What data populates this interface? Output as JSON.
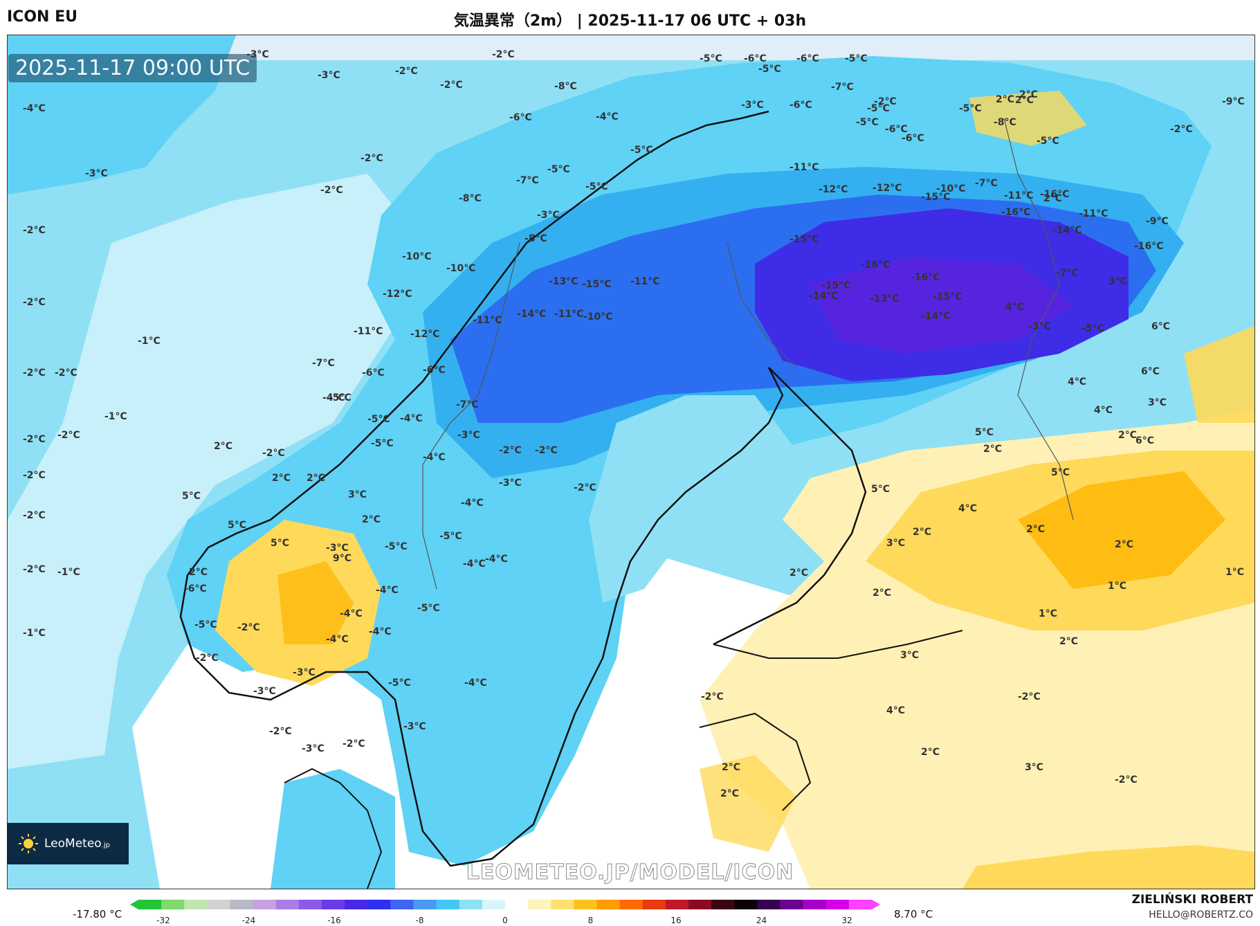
{
  "header": {
    "model_name": "ICON EU",
    "title": "気温異常（2m） | 2025-11-17 06 UTC + 03h"
  },
  "map": {
    "timestamp": "2025-11-17 09:00 UTC",
    "watermark": "LEOMETEO.JP/MODEL/ICON",
    "logo": {
      "brand": "LeoMeteo",
      "suffix": ".jp",
      "icon": "sun-icon"
    },
    "labels": [
      {
        "t": "-3°C",
        "k": "c"
      },
      {
        "t": "-2°C",
        "k": "c"
      },
      {
        "t": "-3°C",
        "k": "c"
      },
      {
        "t": "-2°C",
        "k": "c"
      },
      {
        "t": "-2°C",
        "k": "c"
      },
      {
        "t": "-4°C",
        "k": "c"
      },
      {
        "t": "-3°C",
        "k": "c"
      },
      {
        "t": "-2°C",
        "k": "c"
      },
      {
        "t": "-2°C",
        "k": "c"
      },
      {
        "t": "-2°C",
        "k": "c"
      },
      {
        "t": "-2°C",
        "k": "c"
      },
      {
        "t": "-1°C",
        "k": "c"
      },
      {
        "t": "-2°C",
        "k": "c"
      },
      {
        "t": "-2°C",
        "k": "c"
      },
      {
        "t": "-1°C",
        "k": "c"
      },
      {
        "t": "-2°C",
        "k": "c"
      },
      {
        "t": "-2°C",
        "k": "c"
      },
      {
        "t": "-2°C",
        "k": "c"
      },
      {
        "t": "-2°C",
        "k": "c"
      },
      {
        "t": "-2°C",
        "k": "c"
      },
      {
        "t": "-2°C",
        "k": "c"
      },
      {
        "t": "-1°C",
        "k": "c"
      },
      {
        "t": "-1°C",
        "k": "c"
      },
      {
        "t": "-6°C",
        "k": "c"
      },
      {
        "t": "-8°C",
        "k": "c"
      },
      {
        "t": "-7°C",
        "k": "c"
      },
      {
        "t": "-8°C",
        "k": "c"
      },
      {
        "t": "-3°C",
        "k": "c"
      },
      {
        "t": "-8°C",
        "k": "c"
      },
      {
        "t": "-10°C",
        "k": "c"
      },
      {
        "t": "-10°C",
        "k": "c"
      },
      {
        "t": "-12°C",
        "k": "c"
      },
      {
        "t": "-13°C",
        "k": "c"
      },
      {
        "t": "-15°C",
        "k": "c"
      },
      {
        "t": "-11°C",
        "k": "c"
      },
      {
        "t": "-14°C",
        "k": "c"
      },
      {
        "t": "-11°C",
        "k": "c"
      },
      {
        "t": "-10°C",
        "k": "c"
      },
      {
        "t": "-11°C",
        "k": "c"
      },
      {
        "t": "-11°C",
        "k": "c"
      },
      {
        "t": "-12°C",
        "k": "c"
      },
      {
        "t": "-7°C",
        "k": "c"
      },
      {
        "t": "-6°C",
        "k": "c"
      },
      {
        "t": "-6°C",
        "k": "c"
      },
      {
        "t": "-7°C",
        "k": "c"
      },
      {
        "t": "-5°C",
        "k": "c"
      },
      {
        "t": "-4°C",
        "k": "c"
      },
      {
        "t": "-3°C",
        "k": "c"
      },
      {
        "t": "-5°C",
        "k": "c"
      },
      {
        "t": "-4°C",
        "k": "c"
      },
      {
        "t": "-4°C",
        "k": "c"
      },
      {
        "t": "-2°C",
        "k": "c"
      },
      {
        "t": "-2°C",
        "k": "c"
      },
      {
        "t": "-3°C",
        "k": "c"
      },
      {
        "t": "-4°C",
        "k": "c"
      },
      {
        "t": "-5°C",
        "k": "c"
      },
      {
        "t": "-5°C",
        "k": "c"
      },
      {
        "t": "-4°C",
        "k": "c"
      },
      {
        "t": "-4°C",
        "k": "c"
      },
      {
        "t": "-4°C",
        "k": "c"
      },
      {
        "t": "-5°C",
        "k": "c"
      },
      {
        "t": "-4°C",
        "k": "c"
      },
      {
        "t": "-4°C",
        "k": "c"
      },
      {
        "t": "-4°C",
        "k": "c"
      },
      {
        "t": "-5°C",
        "k": "c"
      },
      {
        "t": "-4°C",
        "k": "c"
      },
      {
        "t": "-3°C",
        "k": "c"
      },
      {
        "t": "-3°C",
        "k": "c"
      },
      {
        "t": "-2°C",
        "k": "c"
      },
      {
        "t": "-3°C",
        "k": "c"
      },
      {
        "t": "-2°C",
        "k": "c"
      },
      {
        "t": "-3°C",
        "k": "c"
      },
      {
        "t": "-6°C",
        "k": "c"
      },
      {
        "t": "-5°C",
        "k": "c"
      },
      {
        "t": "-2°C",
        "k": "c"
      },
      {
        "t": "-2°C",
        "k": "c"
      },
      {
        "t": "-5°C",
        "k": "c"
      },
      {
        "t": "-2°C",
        "k": "c"
      },
      {
        "t": "-3°C",
        "k": "c"
      },
      {
        "t": "2°C",
        "k": "w"
      },
      {
        "t": "2°C",
        "k": "w"
      },
      {
        "t": "2°C",
        "k": "w"
      },
      {
        "t": "3°C",
        "k": "w"
      },
      {
        "t": "5°C",
        "k": "w"
      },
      {
        "t": "5°C",
        "k": "w"
      },
      {
        "t": "2°C",
        "k": "w"
      },
      {
        "t": "9°C",
        "k": "w"
      },
      {
        "t": "5°C",
        "k": "w"
      },
      {
        "t": "2°C",
        "k": "w"
      },
      {
        "t": "-4°C",
        "k": "c"
      },
      {
        "t": "-5°C",
        "k": "c"
      },
      {
        "t": "-5°C",
        "k": "c"
      },
      {
        "t": "-5°C",
        "k": "c"
      },
      {
        "t": "-5°C",
        "k": "c"
      },
      {
        "t": "-6°C",
        "k": "c"
      },
      {
        "t": "-6°C",
        "k": "c"
      },
      {
        "t": "-5°C",
        "k": "c"
      },
      {
        "t": "-5°C",
        "k": "c"
      },
      {
        "t": "-3°C",
        "k": "c"
      },
      {
        "t": "-6°C",
        "k": "c"
      },
      {
        "t": "-2°C",
        "k": "c"
      },
      {
        "t": "-6°C",
        "k": "c"
      },
      {
        "t": "-5°C",
        "k": "c"
      },
      {
        "t": "-7°C",
        "k": "c"
      },
      {
        "t": "-5°C",
        "k": "c"
      },
      {
        "t": "-6°C",
        "k": "c"
      },
      {
        "t": "-5°C",
        "k": "c"
      },
      {
        "t": "2°C",
        "k": "w"
      },
      {
        "t": "-2°C",
        "k": "c"
      },
      {
        "t": "2°C",
        "k": "w"
      },
      {
        "t": "2°C",
        "k": "w"
      },
      {
        "t": "2°C",
        "k": "w"
      },
      {
        "t": "-9°C",
        "k": "c"
      },
      {
        "t": "-8°C",
        "k": "c"
      },
      {
        "t": "-5°C",
        "k": "c"
      },
      {
        "t": "-11°C",
        "k": "c"
      },
      {
        "t": "-11°C",
        "k": "c"
      },
      {
        "t": "-12°C",
        "k": "c"
      },
      {
        "t": "-12°C",
        "k": "c"
      },
      {
        "t": "-10°C",
        "k": "c"
      },
      {
        "t": "-7°C",
        "k": "c"
      },
      {
        "t": "-15°C",
        "k": "c"
      },
      {
        "t": "-16°C",
        "k": "c"
      },
      {
        "t": "-16°C",
        "k": "c"
      },
      {
        "t": "-11°C",
        "k": "c"
      },
      {
        "t": "-9°C",
        "k": "c"
      },
      {
        "t": "-14°C",
        "k": "c"
      },
      {
        "t": "-16°C",
        "k": "c"
      },
      {
        "t": "-15°C",
        "k": "c"
      },
      {
        "t": "-16°C",
        "k": "c"
      },
      {
        "t": "-15°C",
        "k": "c"
      },
      {
        "t": "-16°C",
        "k": "c"
      },
      {
        "t": "-14°C",
        "k": "c"
      },
      {
        "t": "-15°C",
        "k": "c"
      },
      {
        "t": "-13°C",
        "k": "c"
      },
      {
        "t": "-14°C",
        "k": "c"
      },
      {
        "t": "4°C",
        "k": "w"
      },
      {
        "t": "-7°C",
        "k": "c"
      },
      {
        "t": "3°C",
        "k": "w"
      },
      {
        "t": "-5°C",
        "k": "c"
      },
      {
        "t": "-3°C",
        "k": "c"
      },
      {
        "t": "6°C",
        "k": "w"
      },
      {
        "t": "6°C",
        "k": "w"
      },
      {
        "t": "6°C",
        "k": "w"
      },
      {
        "t": "4°C",
        "k": "w"
      },
      {
        "t": "5°C",
        "k": "w"
      },
      {
        "t": "5°C",
        "k": "w"
      },
      {
        "t": "3°C",
        "k": "w"
      },
      {
        "t": "4°C",
        "k": "w"
      },
      {
        "t": "2°C",
        "k": "w"
      },
      {
        "t": "5°C",
        "k": "w"
      },
      {
        "t": "2°C",
        "k": "w"
      },
      {
        "t": "2°C",
        "k": "w"
      },
      {
        "t": "4°C",
        "k": "w"
      },
      {
        "t": "3°C",
        "k": "w"
      },
      {
        "t": "2°C",
        "k": "w"
      },
      {
        "t": "2°C",
        "k": "w"
      },
      {
        "t": "2°C",
        "k": "w"
      },
      {
        "t": "1°C",
        "k": "w"
      },
      {
        "t": "2°C",
        "k": "w"
      },
      {
        "t": "1°C",
        "k": "w"
      },
      {
        "t": "1°C",
        "k": "w"
      },
      {
        "t": "2°C",
        "k": "w"
      },
      {
        "t": "3°C",
        "k": "w"
      },
      {
        "t": "4°C",
        "k": "w"
      },
      {
        "t": "2°C",
        "k": "w"
      },
      {
        "t": "-2°C",
        "k": "c"
      },
      {
        "t": "-2°C",
        "k": "c"
      },
      {
        "t": "3°C",
        "k": "w"
      },
      {
        "t": "-2°C",
        "k": "c"
      },
      {
        "t": "2°C",
        "k": "w"
      },
      {
        "t": "2°C",
        "k": "w"
      }
    ]
  },
  "colorbar": {
    "min_label": "-17.80 °C",
    "max_label": "8.70 °C",
    "ticks": [
      "-32",
      "-24",
      "-16",
      "-8",
      "0",
      "8",
      "16",
      "24",
      "32"
    ],
    "colors": [
      "#22c43a",
      "#7fd96d",
      "#bfe5b0",
      "#d2d2d2",
      "#b9b9c6",
      "#c6a2e2",
      "#a77ee6",
      "#8a5be8",
      "#6a3be6",
      "#4a28e8",
      "#2e30f0",
      "#3f64f2",
      "#4a9af2",
      "#41c8f6",
      "#8fe0f6",
      "#d9f5fb",
      "#ffffff",
      "#fff3b8",
      "#ffe070",
      "#ffc21a",
      "#ff9c00",
      "#ff6a00",
      "#e83a10",
      "#c0182a",
      "#8a0a22",
      "#3a0612",
      "#100008",
      "#350050",
      "#6a0090",
      "#a600c8",
      "#d600e8",
      "#ff40ff"
    ]
  },
  "footer": {
    "author": "ZIELIŃSKI ROBERT",
    "email": "HELLO@ROBERTZ.CO"
  },
  "palette": {
    "sea_cold": "#8fe0f5",
    "cold_1": "#c8f0fa",
    "cold_2": "#5fd2f5",
    "cold_3": "#34b0f0",
    "cold_4": "#2b6ff0",
    "cold_5": "#3e2ce6",
    "cold_6": "#6a1fd8",
    "neutral": "#ffffff",
    "warm_1": "#fff1b5",
    "warm_2": "#ffd95a",
    "warm_3": "#ffb400"
  }
}
